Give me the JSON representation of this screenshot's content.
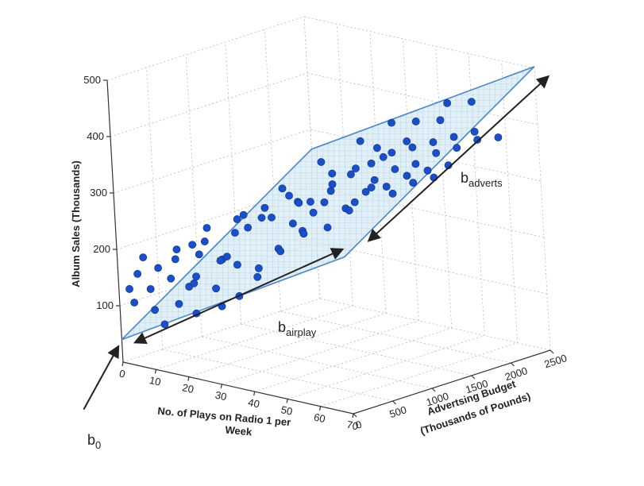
{
  "chart_data": {
    "type": "scatter",
    "xlabel_lines": [
      "No. of Plays on Radio 1 per",
      "Week"
    ],
    "ylabel_lines": [
      "Advertsing Budget",
      "(Thousands of Pounds)"
    ],
    "zlabel": "Album Sales (Thousands)",
    "x_ticks": [
      "0",
      "10",
      "20",
      "30",
      "40",
      "50",
      "60",
      "70"
    ],
    "y_ticks": [
      "0",
      "500",
      "1000",
      "1500",
      "2000",
      "2500"
    ],
    "z_ticks": [
      "100",
      "200",
      "300",
      "400",
      "500"
    ],
    "xlim": [
      0,
      70
    ],
    "ylim": [
      0,
      2500
    ],
    "zlim": [
      0,
      500
    ],
    "grid": true,
    "plane": {
      "b0": 40,
      "b_airplay": 3.4,
      "b_adverts": 0.09
    },
    "annotations": {
      "b0": {
        "main": "b",
        "sub": "0"
      },
      "b_airplay": {
        "main": "b",
        "sub": "airplay"
      },
      "b_adverts": {
        "main": "b",
        "sub": "adverts"
      }
    },
    "colors": {
      "points": "#1a4fc7",
      "plane_fill": "#dcecf6",
      "plane_edge": "#4a86c6",
      "plane_mesh": "#8fb6da"
    },
    "points": [
      {
        "x": 2,
        "y": 50,
        "z": 130
      },
      {
        "x": 3,
        "y": 120,
        "z": 155
      },
      {
        "x": 4,
        "y": 20,
        "z": 110
      },
      {
        "x": 5,
        "y": 300,
        "z": 160
      },
      {
        "x": 6,
        "y": 80,
        "z": 190
      },
      {
        "x": 7,
        "y": 150,
        "z": 95
      },
      {
        "x": 8,
        "y": 400,
        "z": 175
      },
      {
        "x": 9,
        "y": 30,
        "z": 140
      },
      {
        "x": 10,
        "y": 250,
        "z": 150
      },
      {
        "x": 11,
        "y": 500,
        "z": 200
      },
      {
        "x": 12,
        "y": 60,
        "z": 80
      },
      {
        "x": 13,
        "y": 350,
        "z": 135
      },
      {
        "x": 14,
        "y": 180,
        "z": 210
      },
      {
        "x": 15,
        "y": 700,
        "z": 170
      },
      {
        "x": 16,
        "y": 90,
        "z": 120
      },
      {
        "x": 17,
        "y": 450,
        "z": 240
      },
      {
        "x": 18,
        "y": 220,
        "z": 100
      },
      {
        "x": 19,
        "y": 600,
        "z": 185
      },
      {
        "x": 20,
        "y": 130,
        "z": 160
      },
      {
        "x": 21,
        "y": 800,
        "z": 230
      },
      {
        "x": 22,
        "y": 320,
        "z": 145
      },
      {
        "x": 23,
        "y": 40,
        "z": 180
      },
      {
        "x": 24,
        "y": 550,
        "z": 260
      },
      {
        "x": 25,
        "y": 260,
        "z": 120
      },
      {
        "x": 26,
        "y": 900,
        "z": 250
      },
      {
        "x": 27,
        "y": 400,
        "z": 190
      },
      {
        "x": 28,
        "y": 150,
        "z": 210
      },
      {
        "x": 29,
        "y": 700,
        "z": 280
      },
      {
        "x": 30,
        "y": 1000,
        "z": 240
      },
      {
        "x": 31,
        "y": 480,
        "z": 170
      },
      {
        "x": 32,
        "y": 200,
        "z": 150
      },
      {
        "x": 33,
        "y": 850,
        "z": 300
      },
      {
        "x": 34,
        "y": 1100,
        "z": 260
      },
      {
        "x": 35,
        "y": 600,
        "z": 220
      },
      {
        "x": 36,
        "y": 300,
        "z": 200
      },
      {
        "x": 37,
        "y": 950,
        "z": 290
      },
      {
        "x": 38,
        "y": 1200,
        "z": 330
      },
      {
        "x": 39,
        "y": 750,
        "z": 250
      },
      {
        "x": 40,
        "y": 420,
        "z": 230
      },
      {
        "x": 41,
        "y": 1050,
        "z": 310
      },
      {
        "x": 42,
        "y": 1300,
        "z": 280
      },
      {
        "x": 43,
        "y": 880,
        "z": 300
      },
      {
        "x": 44,
        "y": 560,
        "z": 260
      },
      {
        "x": 45,
        "y": 1150,
        "z": 340
      },
      {
        "x": 46,
        "y": 1400,
        "z": 320
      },
      {
        "x": 47,
        "y": 980,
        "z": 290
      },
      {
        "x": 48,
        "y": 700,
        "z": 270
      },
      {
        "x": 49,
        "y": 1250,
        "z": 360
      },
      {
        "x": 50,
        "y": 1500,
        "z": 340
      },
      {
        "x": 51,
        "y": 1080,
        "z": 320
      },
      {
        "x": 52,
        "y": 820,
        "z": 300
      },
      {
        "x": 53,
        "y": 1350,
        "z": 380
      },
      {
        "x": 54,
        "y": 1600,
        "z": 350
      },
      {
        "x": 55,
        "y": 1180,
        "z": 330
      },
      {
        "x": 56,
        "y": 950,
        "z": 340
      },
      {
        "x": 57,
        "y": 1450,
        "z": 390
      },
      {
        "x": 58,
        "y": 1700,
        "z": 370
      },
      {
        "x": 59,
        "y": 1280,
        "z": 350
      },
      {
        "x": 60,
        "y": 1050,
        "z": 330
      },
      {
        "x": 61,
        "y": 1550,
        "z": 400
      },
      {
        "x": 62,
        "y": 1800,
        "z": 380
      },
      {
        "x": 63,
        "y": 1380,
        "z": 360
      },
      {
        "x": 64,
        "y": 1150,
        "z": 350
      },
      {
        "x": 65,
        "y": 1650,
        "z": 410
      },
      {
        "x": 66,
        "y": 1900,
        "z": 395
      },
      {
        "x": 67,
        "y": 1480,
        "z": 370
      },
      {
        "x": 68,
        "y": 1250,
        "z": 360
      },
      {
        "x": 69,
        "y": 1750,
        "z": 420
      },
      {
        "x": 70,
        "y": 2000,
        "z": 400
      },
      {
        "x": 15,
        "y": 1500,
        "z": 260
      },
      {
        "x": 20,
        "y": 1800,
        "z": 300
      },
      {
        "x": 25,
        "y": 2100,
        "z": 330
      },
      {
        "x": 10,
        "y": 1200,
        "z": 220
      },
      {
        "x": 30,
        "y": 2300,
        "z": 360
      },
      {
        "x": 35,
        "y": 1900,
        "z": 340
      },
      {
        "x": 40,
        "y": 2200,
        "z": 380
      },
      {
        "x": 5,
        "y": 900,
        "z": 180
      },
      {
        "x": 45,
        "y": 2400,
        "z": 410
      },
      {
        "x": 50,
        "y": 2100,
        "z": 400
      },
      {
        "x": 55,
        "y": 2300,
        "z": 430
      },
      {
        "x": 28,
        "y": 1600,
        "z": 280
      },
      {
        "x": 33,
        "y": 1700,
        "z": 310
      },
      {
        "x": 38,
        "y": 1850,
        "z": 330
      },
      {
        "x": 43,
        "y": 1950,
        "z": 360
      },
      {
        "x": 22,
        "y": 1400,
        "z": 250
      },
      {
        "x": 18,
        "y": 1100,
        "z": 230
      },
      {
        "x": 12,
        "y": 1000,
        "z": 200
      },
      {
        "x": 8,
        "y": 700,
        "z": 170
      },
      {
        "x": 26,
        "y": 1250,
        "z": 260
      }
    ]
  }
}
